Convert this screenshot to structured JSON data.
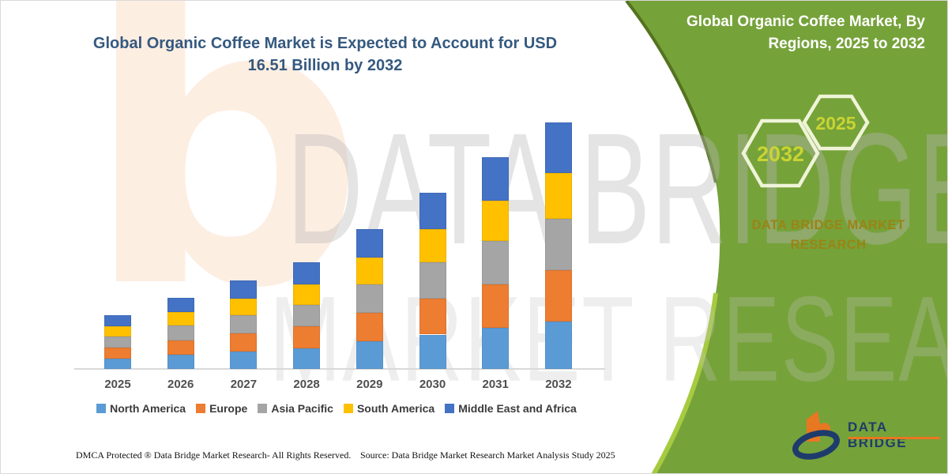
{
  "title": {
    "line1": "Global Organic Coffee Market is Expected to Account for USD",
    "line2": "16.51 Billion by 2032"
  },
  "banner": {
    "heading_line1": "Global Organic Coffee Market, By",
    "heading_line2": "Regions, 2025 to 2032",
    "hexagon_left_label": "2032",
    "hexagon_right_label": "2025",
    "brand_line1": "DATA BRIDGE MARKET",
    "brand_line2": "RESEARCH",
    "green_color": "#76a23a"
  },
  "watermark": {
    "line1": "DATA BRIDGE",
    "line2": "MARKET RESEARCH",
    "logo_letter": "b"
  },
  "logo": {
    "wordmark": "DATA BRIDGE"
  },
  "footer": {
    "left": "DMCA Protected ® Data Bridge Market Research-  All Rights Reserved.",
    "right": "Source: Data Bridge Market Research  Market Analysis Study 2025"
  },
  "chart_data": {
    "type": "bar",
    "stacked": true,
    "title": "Global Organic Coffee Market is Expected to Account for USD 16.51 Billion by 2032",
    "unit": "USD Billion",
    "categories": [
      "2025",
      "2026",
      "2027",
      "2028",
      "2029",
      "2030",
      "2031",
      "2032"
    ],
    "series": [
      {
        "name": "North America",
        "color": "#5b9bd5",
        "values": [
          0.7,
          0.93,
          1.16,
          1.39,
          1.83,
          2.3,
          2.77,
          3.18
        ]
      },
      {
        "name": "Europe",
        "color": "#ed7d31",
        "values": [
          0.74,
          0.98,
          1.22,
          1.46,
          1.92,
          2.42,
          2.91,
          3.44
        ]
      },
      {
        "name": "Asia Pacific",
        "color": "#a5a5a5",
        "values": [
          0.74,
          0.98,
          1.22,
          1.46,
          1.92,
          2.42,
          2.91,
          3.44
        ]
      },
      {
        "name": "South America",
        "color": "#ffc000",
        "values": [
          0.68,
          0.9,
          1.13,
          1.36,
          1.78,
          2.24,
          2.69,
          3.09
        ]
      },
      {
        "name": "Middle East and Africa",
        "color": "#4472c4",
        "values": [
          0.74,
          0.97,
          1.2,
          1.47,
          1.92,
          2.42,
          2.9,
          3.36
        ]
      }
    ],
    "totals": [
      3.6,
      4.76,
      5.93,
      7.14,
      9.37,
      11.8,
      14.18,
      16.51
    ],
    "ylim": [
      0,
      17
    ],
    "grid": false,
    "axis_labels_shown": false,
    "legend_position": "bottom"
  }
}
